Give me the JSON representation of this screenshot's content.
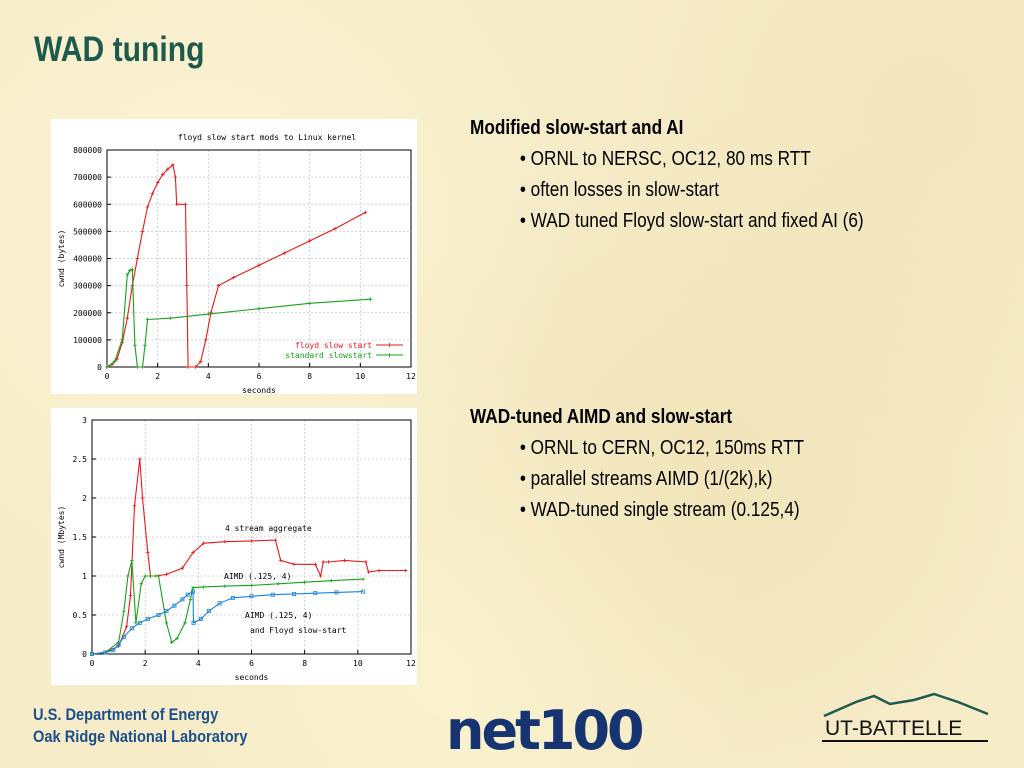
{
  "slide": {
    "title": "WAD tuning",
    "block1": {
      "heading": "Modified slow-start and AI",
      "bullets": [
        "• ORNL to NERSC, OC12, 80 ms RTT",
        "• often losses in slow-start",
        "• WAD tuned Floyd slow-start and fixed AI (6)"
      ]
    },
    "block2": {
      "heading": "WAD-tuned AIMD and slow-start",
      "bullets": [
        "• ORNL to CERN, OC12, 150ms RTT",
        "• parallel streams AIMD (1/(2k),k)",
        "• WAD-tuned single stream (0.125,4)"
      ]
    },
    "footer": {
      "line1": "U.S. Department of Energy",
      "line2": "Oak Ridge National Laboratory"
    },
    "logos": {
      "net100": "net100",
      "utbattelle": "UT-BATTELLE"
    }
  },
  "colors": {
    "title": "#1d5a4d",
    "footer": "#1d4f8c",
    "red": "#e8191c",
    "green": "#16a316",
    "blue": "#1b84d8"
  },
  "chart_data": [
    {
      "type": "line",
      "title": "floyd slow start mods to Linux kernel",
      "xlabel": "seconds",
      "ylabel": "cwnd (bytes)",
      "xlim": [
        0,
        12
      ],
      "ylim": [
        0,
        800000
      ],
      "xticks": [
        0,
        2,
        4,
        6,
        8,
        10,
        12
      ],
      "yticks": [
        0,
        100000,
        200000,
        300000,
        400000,
        500000,
        600000,
        700000,
        800000
      ],
      "grid": true,
      "legend": "bottom-right",
      "series": [
        {
          "name": "floyd slow start",
          "color": "#e8191c",
          "x": [
            0,
            0.2,
            0.4,
            0.6,
            0.8,
            1.0,
            1.2,
            1.4,
            1.6,
            1.8,
            2.0,
            2.2,
            2.4,
            2.6,
            2.7,
            2.75,
            3.1,
            3.15,
            3.2,
            3.5,
            3.7,
            3.9,
            4.1,
            4.4,
            5,
            6,
            7,
            8,
            9,
            10.2
          ],
          "y": [
            0,
            10000,
            30000,
            90000,
            180000,
            300000,
            400000,
            500000,
            590000,
            640000,
            680000,
            710000,
            730000,
            745000,
            700000,
            600000,
            600000,
            300000,
            0,
            0,
            20000,
            100000,
            200000,
            300000,
            330000,
            375000,
            420000,
            465000,
            510000,
            570000
          ]
        },
        {
          "name": "standard slowstart",
          "color": "#16a316",
          "x": [
            0,
            0.3,
            0.6,
            0.8,
            0.9,
            1.0,
            1.1,
            1.2,
            1.4,
            1.5,
            1.6,
            2.5,
            4,
            6,
            8,
            10.4
          ],
          "y": [
            0,
            20000,
            100000,
            340000,
            355000,
            360000,
            80000,
            0,
            0,
            80000,
            175000,
            180000,
            195000,
            215000,
            235000,
            250000
          ]
        }
      ]
    },
    {
      "type": "line",
      "title": "",
      "xlabel": "seconds",
      "ylabel": "cwnd (Mbytes)",
      "xlim": [
        0,
        12
      ],
      "ylim": [
        0,
        3
      ],
      "xticks": [
        0,
        2,
        4,
        6,
        8,
        10,
        12
      ],
      "yticks": [
        0,
        0.5,
        1,
        1.5,
        2,
        2.5,
        3
      ],
      "grid": true,
      "annotations": [
        "4 stream aggregate",
        "AIMD (.125, 4)",
        "AIMD (.125, 4)",
        "and Floyd slow-start"
      ],
      "series": [
        {
          "name": "4 stream aggregate",
          "color": "#e8191c",
          "x": [
            0,
            0.5,
            1.0,
            1.3,
            1.45,
            1.6,
            1.8,
            1.9,
            2.1,
            2.2,
            2.4,
            2.8,
            3.4,
            3.8,
            4.2,
            5,
            6,
            6.9,
            7.1,
            7.6,
            8.4,
            8.6,
            8.7,
            8.9,
            9.5,
            10.3,
            10.4,
            10.8,
            11.8
          ],
          "y": [
            0,
            0.02,
            0.1,
            0.35,
            0.75,
            1.9,
            2.5,
            2.0,
            1.3,
            1.0,
            1.0,
            1.02,
            1.1,
            1.3,
            1.42,
            1.44,
            1.45,
            1.46,
            1.2,
            1.15,
            1.15,
            1.0,
            1.18,
            1.18,
            1.2,
            1.18,
            1.05,
            1.07,
            1.07
          ]
        },
        {
          "name": "AIMD (.125, 4)",
          "color": "#16a316",
          "x": [
            0,
            0.5,
            1.0,
            1.2,
            1.35,
            1.5,
            1.65,
            1.85,
            2.0,
            2.2,
            2.5,
            2.8,
            3.0,
            3.2,
            3.5,
            3.7,
            3.8,
            4.2,
            5,
            6,
            7,
            8,
            9,
            10.2
          ],
          "y": [
            0,
            0.02,
            0.15,
            0.55,
            1.0,
            1.2,
            0.4,
            0.9,
            1.0,
            1.0,
            1.0,
            0.4,
            0.15,
            0.2,
            0.4,
            0.7,
            0.85,
            0.86,
            0.87,
            0.88,
            0.9,
            0.92,
            0.94,
            0.96
          ]
        },
        {
          "name": "AIMD (.125, 4) and Floyd slow-start",
          "color": "#1b84d8",
          "x": [
            0,
            0.5,
            0.8,
            1.0,
            1.2,
            1.5,
            1.8,
            2.1,
            2.5,
            2.8,
            3.1,
            3.4,
            3.6,
            3.8,
            3.82,
            4.1,
            4.4,
            4.8,
            5.3,
            6,
            6.8,
            7.6,
            8.4,
            9.2,
            10.2
          ],
          "y": [
            0,
            0.02,
            0.05,
            0.12,
            0.22,
            0.33,
            0.4,
            0.45,
            0.5,
            0.55,
            0.62,
            0.7,
            0.76,
            0.8,
            0.4,
            0.45,
            0.55,
            0.65,
            0.72,
            0.74,
            0.76,
            0.77,
            0.78,
            0.79,
            0.8
          ]
        }
      ]
    }
  ]
}
